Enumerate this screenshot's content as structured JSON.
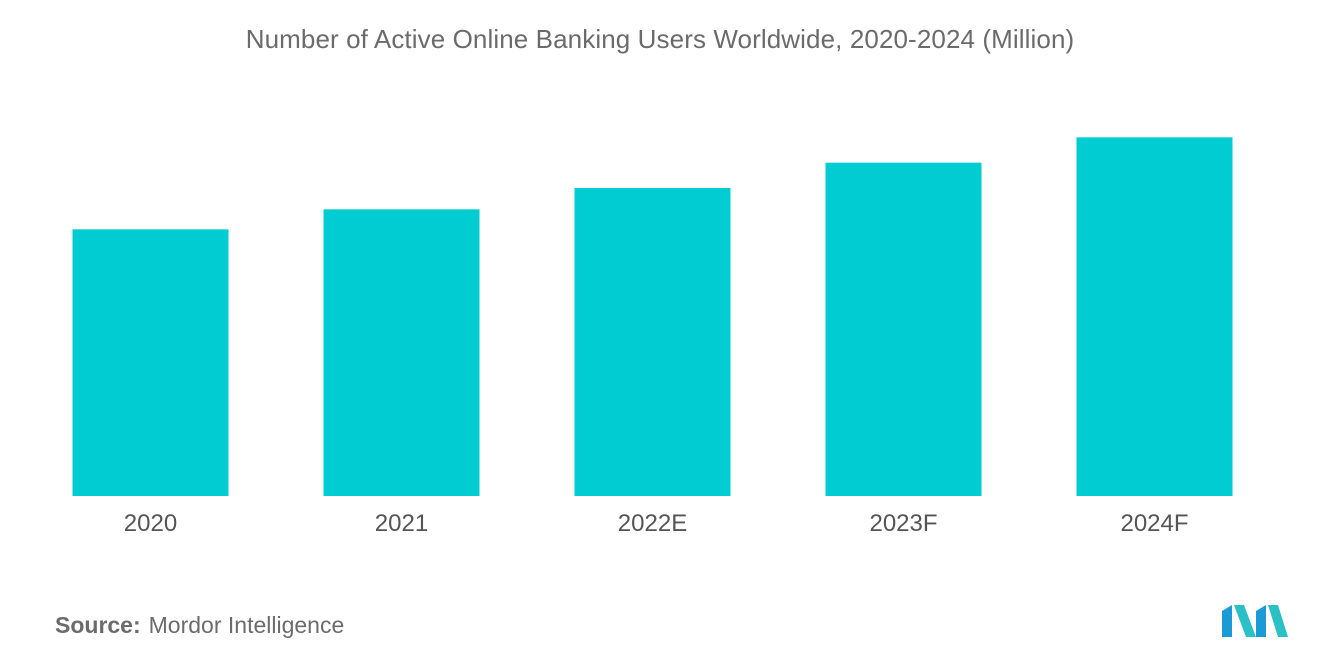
{
  "chart_data": {
    "type": "bar",
    "title": "Number of Active Online Banking Users Worldwide, 2020-2024 (Million)",
    "categories": [
      "2020",
      "2021",
      "2022E",
      "2023F",
      "2024F"
    ],
    "values": [
      2.0,
      2.15,
      2.31,
      2.5,
      2.69
    ],
    "xlabel": "",
    "ylabel": "",
    "ylim": [
      0,
      3.0
    ],
    "grid": false,
    "legend": "none",
    "bar_color": "#00ccd1"
  },
  "source": {
    "label": "Source:",
    "value": "Mordor Intelligence"
  },
  "logo": {
    "name": "mordor-intelligence-logo",
    "colors": [
      "#1c9ad6",
      "#2bc0c6"
    ]
  }
}
